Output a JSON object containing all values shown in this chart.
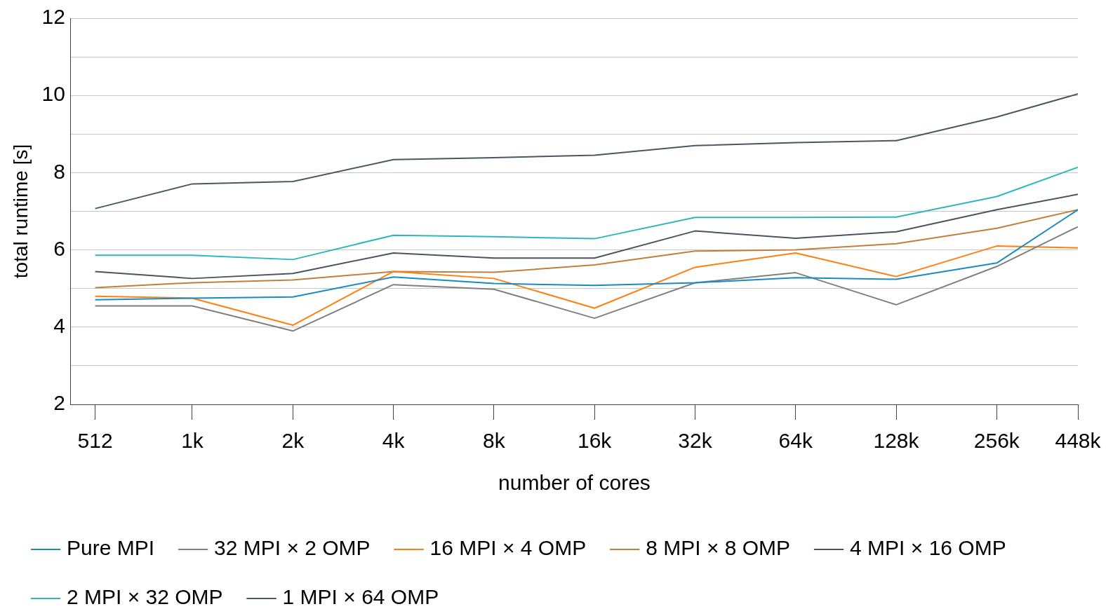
{
  "chart_data": {
    "type": "line",
    "xlabel": "number of cores",
    "ylabel": "total runtime [s]",
    "x": [
      512,
      1000,
      2000,
      4000,
      8000,
      16000,
      32000,
      64000,
      128000,
      256000,
      448000
    ],
    "log": "x",
    "xlim": [
      433,
      448000
    ],
    "xticks": [
      {
        "value": 512,
        "label": "512"
      },
      {
        "value": 1000,
        "label": "1k"
      },
      {
        "value": 2000,
        "label": "2k"
      },
      {
        "value": 4000,
        "label": "4k"
      },
      {
        "value": 8000,
        "label": "8k"
      },
      {
        "value": 16000,
        "label": "16k"
      },
      {
        "value": 32000,
        "label": "32k"
      },
      {
        "value": 64000,
        "label": "64k"
      },
      {
        "value": 128000,
        "label": "128k"
      },
      {
        "value": 256000,
        "label": "256k"
      },
      {
        "value": 448000,
        "label": "448k"
      }
    ],
    "ylim": [
      2,
      12
    ],
    "yticks": [
      2,
      {
        "value": 3,
        "label": null
      },
      4,
      {
        "value": 5,
        "label": null
      },
      6,
      {
        "value": 7,
        "label": null
      },
      8,
      {
        "value": 9,
        "label": null
      },
      10,
      {
        "value": 11,
        "label": null
      },
      12
    ],
    "grid": "y",
    "legend": "bottom",
    "marker": "none",
    "line_style": "solid",
    "series": [
      {
        "name": "Pure MPI",
        "color": "#1a8ac2",
        "values": [
          4.71,
          4.75,
          4.78,
          5.3,
          5.13,
          5.08,
          5.15,
          5.28,
          5.24,
          5.66,
          7.04
        ]
      },
      {
        "name": "32 MPI × 2 OMP",
        "color": "#808080",
        "values": [
          4.55,
          4.55,
          3.9,
          5.1,
          4.98,
          4.23,
          5.15,
          5.41,
          4.58,
          5.57,
          6.6
        ]
      },
      {
        "name": "16 MPI × 4 OMP",
        "color": "#ff7f0e",
        "values": [
          4.8,
          4.75,
          4.05,
          5.44,
          5.26,
          4.49,
          5.55,
          5.92,
          5.31,
          6.1,
          6.05
        ]
      },
      {
        "name": "8 MPI × 8 OMP",
        "color": "#c07f3c",
        "values": [
          5.02,
          5.15,
          5.22,
          5.44,
          5.42,
          5.61,
          5.97,
          6.0,
          6.16,
          6.56,
          7.04
        ]
      },
      {
        "name": "4 MPI × 16 OMP",
        "color": "#4a5560",
        "values": [
          5.44,
          5.26,
          5.39,
          5.92,
          5.79,
          5.79,
          6.49,
          6.3,
          6.47,
          7.04,
          7.44
        ]
      },
      {
        "name": "2 MPI × 32 OMP",
        "color": "#2ab7c0",
        "values": [
          5.86,
          5.86,
          5.75,
          6.38,
          6.34,
          6.29,
          6.84,
          6.84,
          6.85,
          7.38,
          8.14
        ]
      },
      {
        "name": "1 MPI × 64 OMP",
        "color": "#485a5e",
        "values": [
          7.07,
          7.71,
          7.77,
          8.34,
          8.39,
          8.45,
          8.7,
          8.78,
          8.83,
          9.44,
          10.04
        ]
      }
    ]
  }
}
